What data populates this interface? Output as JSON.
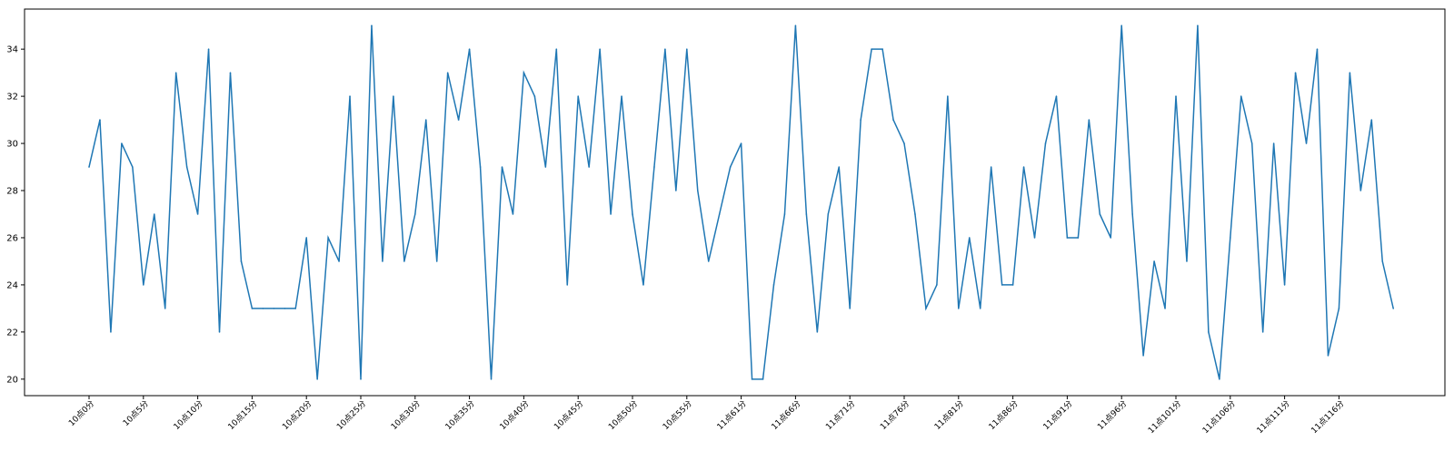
{
  "chart_data": {
    "type": "line",
    "title": "",
    "xlabel": "",
    "ylabel": "",
    "grid": false,
    "line_color": "#1f77b4",
    "ylim": [
      19.3,
      35.7
    ],
    "yticks": [
      20,
      22,
      24,
      26,
      28,
      30,
      32,
      34
    ],
    "x_tick_labels": [
      "10点0分",
      "10点5分",
      "10点10分",
      "10点15分",
      "10点20分",
      "10点25分",
      "10点30分",
      "10点35分",
      "10点40分",
      "10点45分",
      "10点50分",
      "10点55分",
      "11点61分",
      "11点66分",
      "11点71分",
      "11点76分",
      "11点81分",
      "11点86分",
      "11点91分",
      "11点96分",
      "11点101分",
      "11点106分",
      "11点111分",
      "11点116分"
    ],
    "tick_every": 5,
    "series": [
      {
        "values": [
          29,
          31,
          22,
          30,
          29,
          24,
          27,
          23,
          33,
          29,
          27,
          34,
          22,
          33,
          25,
          23,
          23,
          23,
          23,
          23,
          26,
          20,
          26,
          25,
          32,
          20,
          35,
          25,
          32,
          25,
          27,
          31,
          25,
          33,
          31,
          34,
          29,
          20,
          29,
          27,
          33,
          32,
          29,
          34,
          24,
          32,
          29,
          34,
          27,
          32,
          27,
          24,
          29,
          34,
          28,
          34,
          28,
          25,
          27,
          29,
          30,
          20,
          20,
          24,
          27,
          35,
          27,
          22,
          27,
          29,
          23,
          31,
          34,
          34,
          31,
          30,
          27,
          23,
          24,
          32,
          23,
          26,
          23,
          29,
          24,
          24,
          29,
          26,
          30,
          32,
          26,
          26,
          31,
          27,
          26,
          35,
          27,
          21,
          25,
          23,
          32,
          25,
          35,
          22,
          20,
          26,
          32,
          30,
          22,
          30,
          24,
          33,
          30,
          34,
          21,
          23,
          33,
          28,
          31,
          25,
          23
        ]
      }
    ]
  }
}
